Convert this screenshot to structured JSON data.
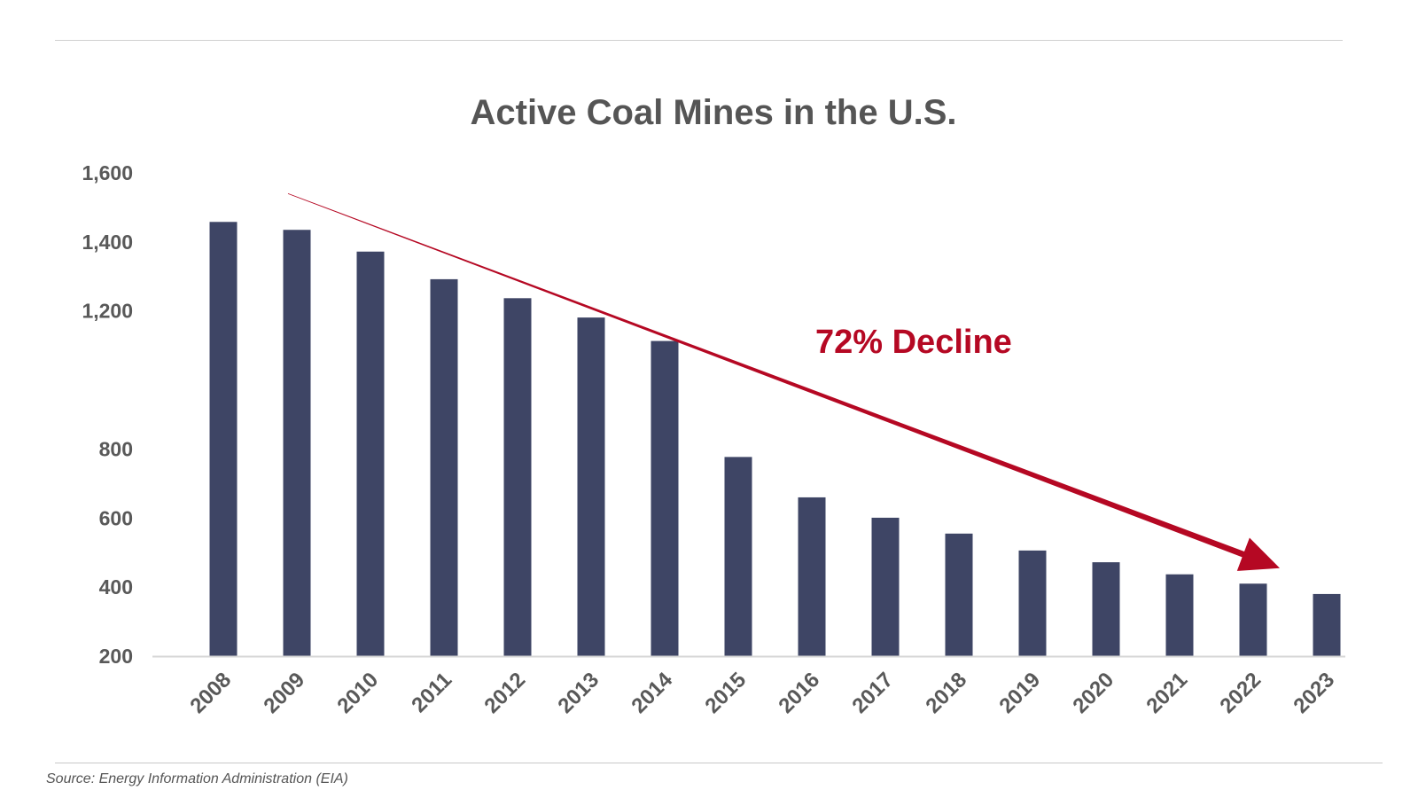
{
  "source": "Source: Energy Information Administration (EIA)",
  "colors": {
    "bar": "#3e4565",
    "accent": "#b50823",
    "text": "#595959",
    "axis": "#d6d6d6"
  },
  "chart_data": {
    "type": "bar",
    "title": "Active Coal Mines in the U.S.",
    "xlabel": "",
    "ylabel": "",
    "ylim": [
      200,
      1600
    ],
    "grid": false,
    "yticks": [
      200,
      400,
      600,
      800,
      1200,
      1400,
      1600
    ],
    "ytick_labels": [
      "200",
      "400",
      "600",
      "800",
      "1,200",
      "1,400",
      "1,600"
    ],
    "categories": [
      "2008",
      "2009",
      "2010",
      "2011",
      "2012",
      "2013",
      "2014",
      "2015",
      "2016",
      "2017",
      "2018",
      "2019",
      "2020",
      "2021",
      "2022",
      "2023"
    ],
    "values": [
      1458,
      1435,
      1372,
      1292,
      1237,
      1181,
      1113,
      777,
      660,
      601,
      555,
      506,
      472,
      437,
      410,
      380
    ],
    "annotation": {
      "text": "72% Decline",
      "arrow_from": {
        "x": "2009",
        "y": 1540
      },
      "arrow_to": {
        "x": "2022",
        "y": 455
      }
    }
  }
}
